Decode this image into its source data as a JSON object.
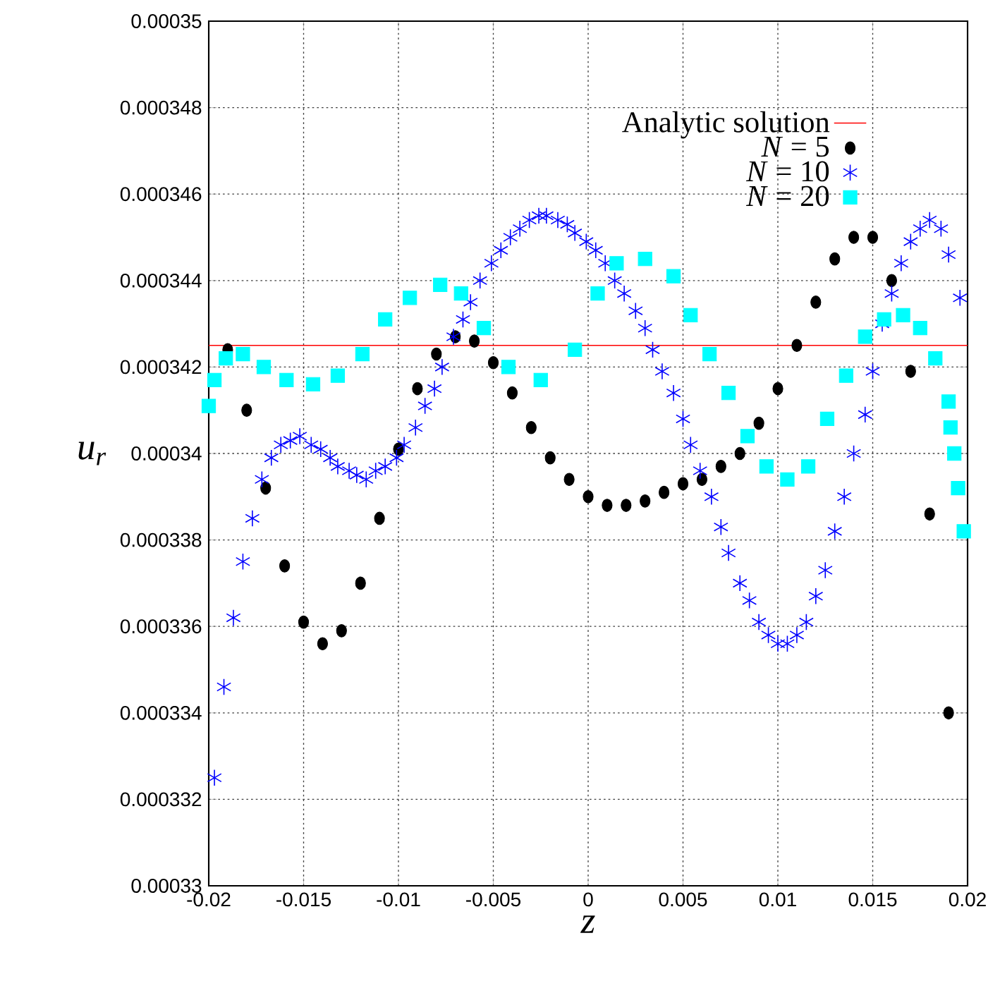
{
  "chart_data": {
    "type": "scatter",
    "xlabel": "z",
    "ylabel": "u$_{r}$",
    "xlim": [
      -0.02,
      0.02
    ],
    "ylim": [
      0.00033,
      0.00035
    ],
    "xticks": [
      -0.02,
      -0.015,
      -0.01,
      -0.005,
      0,
      0.005,
      0.01,
      0.015,
      0.02
    ],
    "yticks": [
      0.00033,
      0.000332,
      0.000334,
      0.000336,
      0.000338,
      0.00034,
      0.000342,
      0.000344,
      0.000346,
      0.000348,
      0.00035
    ],
    "grid": true,
    "legend": "top right",
    "series": [
      {
        "name": "Analytic solution",
        "type": "line",
        "line_style": "solid",
        "marker": "none",
        "color": "#ff0000",
        "x": [
          -0.02,
          0.02
        ],
        "values": [
          0.0003425,
          0.0003425
        ]
      },
      {
        "name": "*N* = 5",
        "marker": "circle",
        "color": "#000000",
        "x": [
          -0.019,
          -0.018,
          -0.017,
          -0.016,
          -0.015,
          -0.014,
          -0.013,
          -0.012,
          -0.011,
          -0.01,
          -0.009,
          -0.008,
          -0.007,
          -0.006,
          -0.005,
          -0.004,
          -0.003,
          -0.002,
          -0.001,
          0,
          0.001,
          0.002,
          0.003,
          0.004,
          0.005,
          0.006,
          0.007,
          0.008,
          0.009,
          0.01,
          0.011,
          0.012,
          0.013,
          0.014,
          0.015,
          0.016,
          0.017,
          0.018,
          0.019
        ],
        "values": [
          0.0003424,
          0.000341,
          0.0003392,
          0.0003374,
          0.0003361,
          0.0003356,
          0.0003359,
          0.000337,
          0.0003385,
          0.0003401,
          0.0003415,
          0.0003423,
          0.0003427,
          0.0003426,
          0.0003421,
          0.0003414,
          0.0003406,
          0.0003399,
          0.0003394,
          0.000339,
          0.0003388,
          0.0003388,
          0.0003389,
          0.0003391,
          0.0003393,
          0.0003394,
          0.0003397,
          0.00034,
          0.0003407,
          0.0003415,
          0.0003425,
          0.0003435,
          0.0003445,
          0.000345,
          0.000345,
          0.000344,
          0.0003419,
          0.0003386,
          0.000334
        ]
      },
      {
        "name": "*N* = 10",
        "marker": "cross",
        "color": "#0000ff",
        "x": [
          -0.0197,
          -0.0192,
          -0.0187,
          -0.0182,
          -0.0177,
          -0.0172,
          -0.0167,
          -0.0162,
          -0.0157,
          -0.0152,
          -0.0146,
          -0.0141,
          -0.0136,
          -0.0132,
          -0.0126,
          -0.0122,
          -0.0117,
          -0.0112,
          -0.0107,
          -0.0101,
          -0.0097,
          -0.0091,
          -0.0086,
          -0.0081,
          -0.0077,
          -0.0071,
          -0.0066,
          -0.0062,
          -0.0057,
          -0.0051,
          -0.0046,
          -0.0041,
          -0.0036,
          -0.0031,
          -0.0026,
          -0.0022,
          -0.0016,
          -0.0011,
          -0.0007,
          -0.0001,
          0.0004,
          0.0009,
          0.0014,
          0.0019,
          0.0025,
          0.003,
          0.0034,
          0.0039,
          0.0045,
          0.005,
          0.0054,
          0.0059,
          0.0065,
          0.007,
          0.0074,
          0.008,
          0.0085,
          0.009,
          0.0095,
          0.01,
          0.0105,
          0.011,
          0.0115,
          0.012,
          0.0125,
          0.013,
          0.0135,
          0.014,
          0.0146,
          0.015,
          0.0155,
          0.016,
          0.0165,
          0.017,
          0.0175,
          0.018,
          0.0186,
          0.019,
          0.0196
        ],
        "values": [
          0.0003325,
          0.0003346,
          0.0003362,
          0.0003375,
          0.0003385,
          0.0003394,
          0.0003399,
          0.0003402,
          0.0003403,
          0.0003404,
          0.0003402,
          0.0003401,
          0.0003399,
          0.0003397,
          0.0003396,
          0.0003395,
          0.0003394,
          0.0003396,
          0.0003397,
          0.0003399,
          0.0003402,
          0.0003406,
          0.0003411,
          0.0003415,
          0.000342,
          0.0003427,
          0.0003431,
          0.0003435,
          0.000344,
          0.0003444,
          0.0003447,
          0.000345,
          0.0003452,
          0.0003454,
          0.0003455,
          0.0003455,
          0.0003454,
          0.0003453,
          0.0003451,
          0.0003449,
          0.0003447,
          0.0003444,
          0.000344,
          0.0003437,
          0.0003433,
          0.0003429,
          0.0003424,
          0.0003419,
          0.0003414,
          0.0003408,
          0.0003402,
          0.0003396,
          0.000339,
          0.0003383,
          0.0003377,
          0.000337,
          0.0003366,
          0.0003361,
          0.0003358,
          0.0003356,
          0.0003356,
          0.0003358,
          0.0003361,
          0.0003367,
          0.0003373,
          0.0003382,
          0.000339,
          0.00034,
          0.0003409,
          0.0003419,
          0.000343,
          0.0003437,
          0.0003444,
          0.0003449,
          0.0003452,
          0.0003454,
          0.0003452,
          0.0003446,
          0.0003436
        ]
      },
      {
        "name": "*N* = 20",
        "marker": "square",
        "color": "#00ffff",
        "x": [
          -0.02,
          -0.0197,
          -0.0191,
          -0.0182,
          -0.0171,
          -0.0159,
          -0.0145,
          -0.0132,
          -0.0119,
          -0.0107,
          -0.0094,
          -0.0078,
          -0.0067,
          -0.0055,
          -0.0042,
          -0.0025,
          -0.0007,
          0.0005,
          0.0015,
          0.003,
          0.0045,
          0.0054,
          0.0064,
          0.0074,
          0.0084,
          0.0094,
          0.0105,
          0.0116,
          0.0126,
          0.0136,
          0.0146,
          0.0156,
          0.0166,
          0.0175,
          0.0183,
          0.019,
          0.0191,
          0.0193,
          0.0195,
          0.0198
        ],
        "values": [
          0.0003411,
          0.0003417,
          0.0003422,
          0.0003423,
          0.000342,
          0.0003417,
          0.0003416,
          0.0003418,
          0.0003423,
          0.0003431,
          0.0003436,
          0.0003439,
          0.0003437,
          0.0003429,
          0.000342,
          0.0003417,
          0.0003424,
          0.0003437,
          0.0003444,
          0.0003445,
          0.0003441,
          0.0003432,
          0.0003423,
          0.0003414,
          0.0003404,
          0.0003397,
          0.0003394,
          0.0003397,
          0.0003408,
          0.0003418,
          0.0003427,
          0.0003431,
          0.0003432,
          0.0003429,
          0.0003422,
          0.0003412,
          0.0003406,
          0.00034,
          0.0003392,
          0.0003382
        ]
      }
    ]
  }
}
